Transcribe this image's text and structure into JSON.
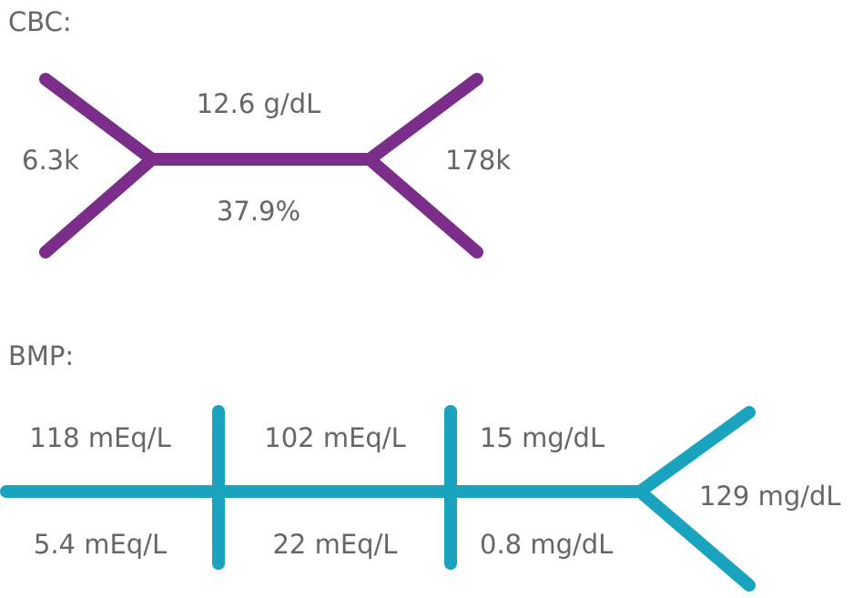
{
  "cbc": {
    "heading": "CBC:",
    "wbc": "6.3k",
    "hemoglobin": "12.6 g/dL",
    "hematocrit": "37.9%",
    "platelets": "178k",
    "color": "#7b2d8a"
  },
  "bmp": {
    "heading": "BMP:",
    "sodium": "118 mEq/L",
    "chloride": "102 mEq/L",
    "bun": "15 mg/dL",
    "potassium": "5.4 mEq/L",
    "bicarbonate": "22 mEq/L",
    "creatinine": "0.8 mg/dL",
    "glucose": "129 mg/dL",
    "color": "#1aa3bf"
  },
  "text_color": "#666666"
}
